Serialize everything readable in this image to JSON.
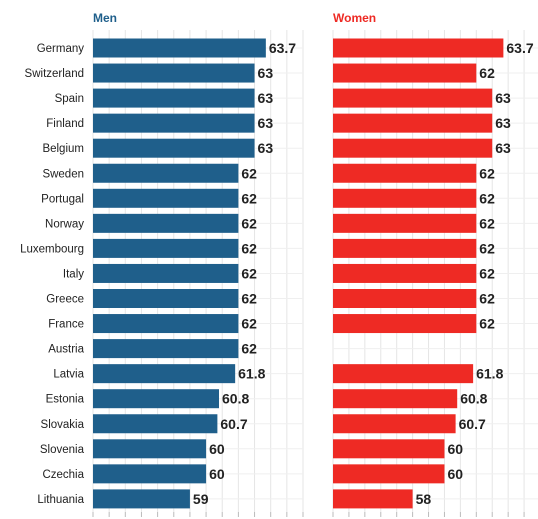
{
  "chart_data": {
    "type": "bar",
    "orientation": "horizontal",
    "categories": [
      "Germany",
      "Switzerland",
      "Spain",
      "Finland",
      "Belgium",
      "Sweden",
      "Portugal",
      "Norway",
      "Luxembourg",
      "Italy",
      "Greece",
      "France",
      "Austria",
      "Latvia",
      "Estonia",
      "Slovakia",
      "Slovenia",
      "Czechia",
      "Lithuania"
    ],
    "series": [
      {
        "name": "Men",
        "color": "#1f5f8b",
        "values": [
          63.7,
          63,
          63,
          63,
          63,
          62,
          62,
          62,
          62,
          62,
          62,
          62,
          62,
          61.8,
          60.8,
          60.7,
          60,
          60,
          59
        ],
        "labels": [
          "63.7",
          "63",
          "63",
          "63",
          "63",
          "62",
          "62",
          "62",
          "62",
          "62",
          "62",
          "62",
          "62",
          "61.8",
          "60.8",
          "60.7",
          "60",
          "60",
          "59"
        ]
      },
      {
        "name": "Women",
        "color": "#ee2a24",
        "values": [
          63.7,
          62,
          63,
          63,
          63,
          62,
          62,
          62,
          62,
          62,
          62,
          62,
          null,
          61.8,
          60.8,
          60.7,
          60,
          60,
          58
        ],
        "labels": [
          "63.7",
          "62",
          "63",
          "63",
          "63",
          "62",
          "62",
          "62",
          "62",
          "62",
          "62",
          "62",
          "",
          "61.8",
          "60.8",
          "60.7",
          "60",
          "60",
          "58"
        ]
      }
    ],
    "xlim": [
      53,
      66
    ],
    "grid": true,
    "xlabel": "",
    "ylabel": ""
  }
}
